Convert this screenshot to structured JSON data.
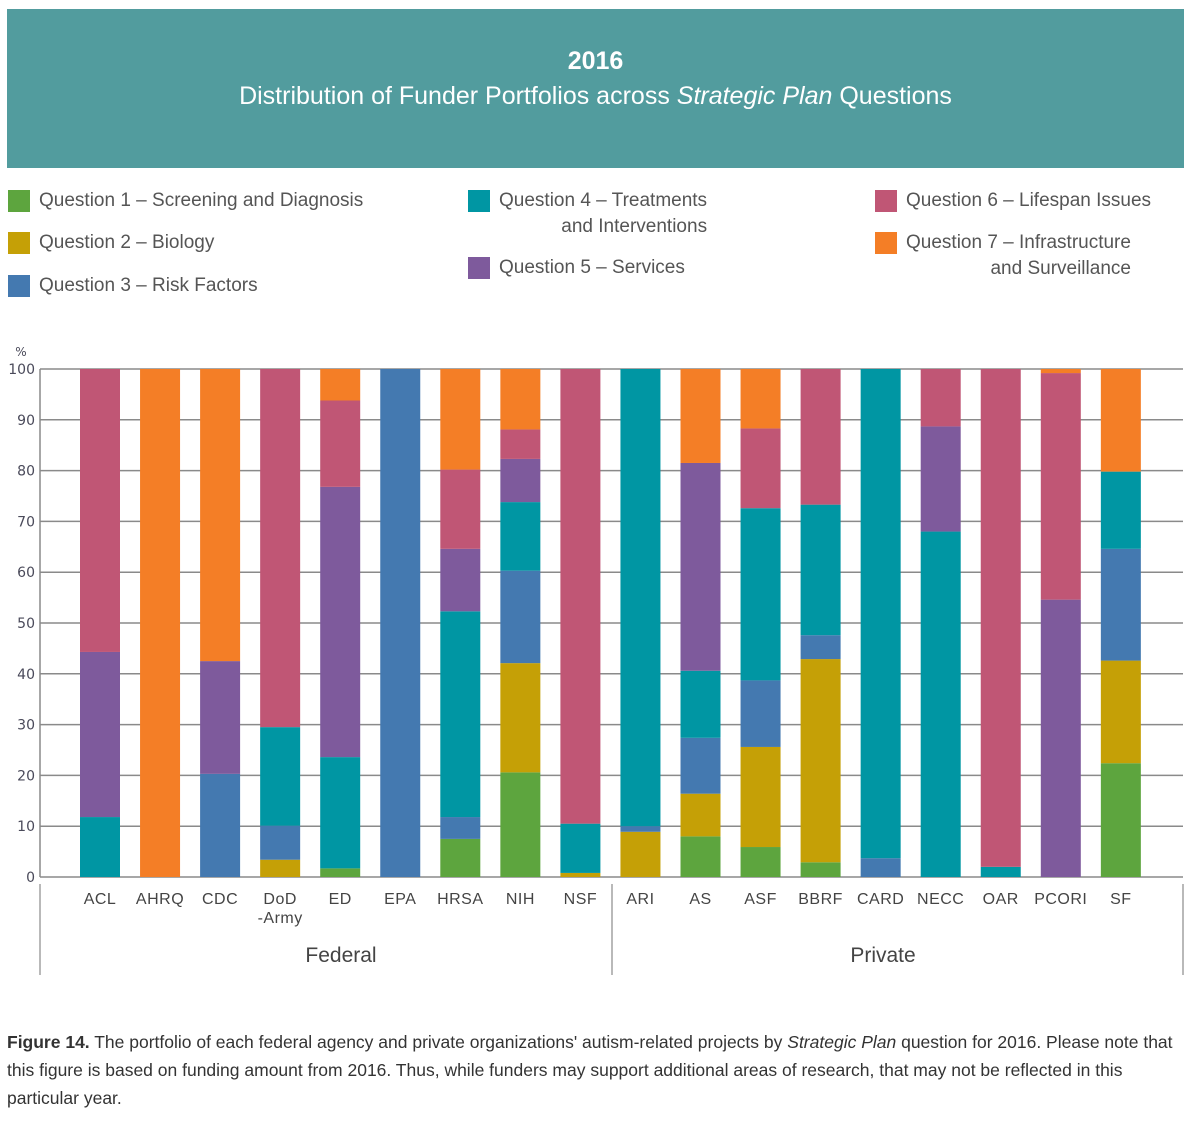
{
  "banner": {
    "year": "2016",
    "title_pre": "Distribution of Funder Portfolios across ",
    "title_italic": "Strategic Plan",
    "title_post": " Questions",
    "background": "#529c9e"
  },
  "caption": {
    "label": "Figure 14.",
    "text_1": " The portfolio of each federal agency and private organizations' autism-related projects by ",
    "italic": "Strategic Plan",
    "text_2": " question for 2016. Please note that this figure is based on funding amount from 2016. Thus, while funders may support additional areas of research, that may not be reflected in this particular year."
  },
  "chart_data": {
    "type": "bar",
    "stacked": true,
    "title": "2016 Distribution of Funder Portfolios across Strategic Plan Questions",
    "ylabel": "%",
    "ylim": [
      0,
      100
    ],
    "yticks": [
      0,
      10,
      20,
      30,
      40,
      50,
      60,
      70,
      80,
      90,
      100
    ],
    "grid": true,
    "legend_position": "top",
    "categories": [
      "ACL",
      "AHRQ",
      "CDC",
      "DoD -Army",
      "ED",
      "EPA",
      "HRSA",
      "NIH",
      "NSF",
      "ARI",
      "AS",
      "ASF",
      "BBRF",
      "CARD",
      "NECC",
      "OAR",
      "PCORI",
      "SF"
    ],
    "category_lines": [
      [
        "ACL"
      ],
      [
        "AHRQ"
      ],
      [
        "CDC"
      ],
      [
        "DoD",
        "-Army"
      ],
      [
        "ED"
      ],
      [
        "EPA"
      ],
      [
        "HRSA"
      ],
      [
        "NIH"
      ],
      [
        "NSF"
      ],
      [
        "ARI"
      ],
      [
        "AS"
      ],
      [
        "ASF"
      ],
      [
        "BBRF"
      ],
      [
        "CARD"
      ],
      [
        "NECC"
      ],
      [
        "OAR"
      ],
      [
        "PCORI"
      ],
      [
        "SF"
      ]
    ],
    "groups": [
      {
        "name": "Federal",
        "categories": [
          "ACL",
          "AHRQ",
          "CDC",
          "DoD -Army",
          "ED",
          "EPA",
          "HRSA",
          "NIH",
          "NSF"
        ]
      },
      {
        "name": "Private",
        "categories": [
          "ARI",
          "AS",
          "ASF",
          "BBRF",
          "CARD",
          "NECC",
          "OAR",
          "PCORI",
          "SF"
        ]
      }
    ],
    "series": [
      {
        "name": "Question 1 – Screening and Diagnosis",
        "color": "#5da53e",
        "values": [
          0,
          0,
          0,
          0,
          1.7,
          0,
          7.5,
          20.6,
          0,
          0,
          8.0,
          5.9,
          2.9,
          0,
          0,
          0,
          0,
          22.4
        ]
      },
      {
        "name": "Question 2 – Biology",
        "color": "#c5a006",
        "values": [
          0,
          0,
          0,
          3.4,
          0,
          0,
          0,
          21.5,
          0.8,
          8.9,
          8.4,
          19.7,
          40.0,
          0,
          0,
          0,
          0,
          20.2
        ]
      },
      {
        "name": "Question 3 – Risk Factors",
        "color": "#4479b0",
        "values": [
          0,
          0,
          20.3,
          6.7,
          0,
          100,
          4.3,
          18.2,
          0,
          1.1,
          11.0,
          13.1,
          4.7,
          3.7,
          0,
          0,
          0,
          22.0
        ]
      },
      {
        "name": "Question 4 – Treatments and Interventions",
        "color": "#0096a3",
        "values": [
          11.8,
          0,
          0,
          19.4,
          21.9,
          0,
          40.5,
          13.5,
          9.7,
          90.0,
          13.2,
          33.9,
          25.7,
          96.3,
          68.0,
          2.0,
          0,
          15.2
        ]
      },
      {
        "name": "Question 5 – Services",
        "color": "#7e5a9c",
        "values": [
          32.5,
          0,
          22.2,
          0,
          53.2,
          0,
          12.3,
          8.5,
          0,
          0,
          40.9,
          0,
          0,
          0,
          20.7,
          0,
          54.6,
          0
        ]
      },
      {
        "name": "Question 6 – Lifespan Issues",
        "color": "#c05675",
        "values": [
          55.7,
          0,
          0,
          70.5,
          17.0,
          0,
          15.6,
          5.8,
          89.5,
          0,
          0,
          15.7,
          26.7,
          0,
          11.3,
          98.0,
          44.6,
          0
        ]
      },
      {
        "name": "Question 7 – Infrastructure and Surveillance",
        "color": "#f47e26",
        "values": [
          0,
          100,
          57.5,
          0,
          6.2,
          0,
          19.8,
          11.9,
          0,
          0,
          18.5,
          11.7,
          0,
          0,
          0,
          0,
          0.8,
          20.2
        ]
      }
    ]
  },
  "legend": {
    "items": [
      {
        "line1": "Question 1 – Screening and Diagnosis",
        "line2": ""
      },
      {
        "line1": "Question 2 – Biology",
        "line2": ""
      },
      {
        "line1": "Question 3 – Risk Factors",
        "line2": ""
      },
      {
        "line1": "Question 4 – Treatments",
        "line2": "and Interventions"
      },
      {
        "line1": "Question 5 – Services",
        "line2": ""
      },
      {
        "line1": "Question 6 – Lifespan Issues",
        "line2": ""
      },
      {
        "line1": "Question 7 – Infrastructure",
        "line2": "and Surveillance"
      }
    ]
  }
}
